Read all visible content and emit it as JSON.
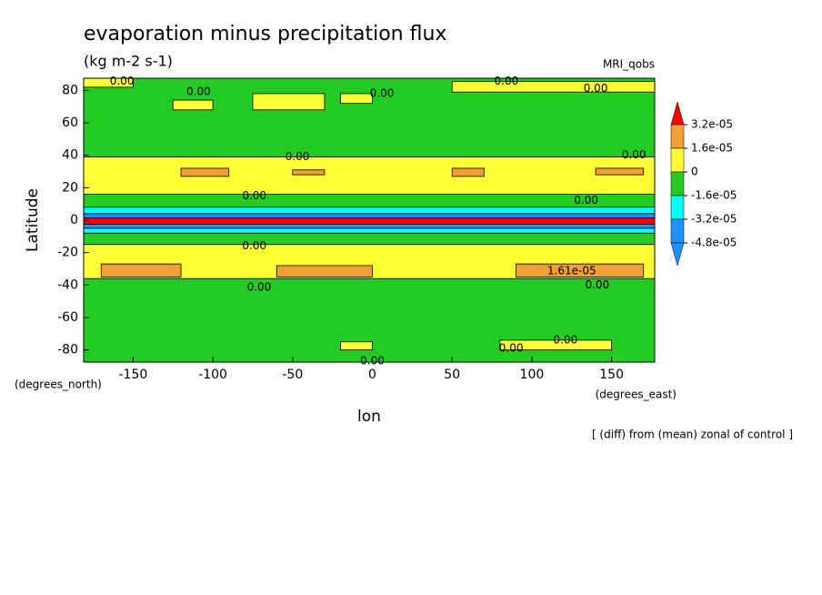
{
  "chart_data": {
    "type": "contour",
    "title": "evaporation minus precipitation flux",
    "subtitle": "(kg m-2 s-1)",
    "dataset": "MRI_qobs",
    "x_label": "lon",
    "y_label": "Latitude",
    "x_units": "(degrees_east)",
    "y_units": "(degrees_north)",
    "footnote": "[ (diff) from (mean) zonal of control ]",
    "xlim": [
      -181,
      177
    ],
    "ylim": [
      -87.5,
      87.5
    ],
    "xticks": [
      -150,
      -100,
      -50,
      0,
      50,
      100,
      150
    ],
    "yticks": [
      80,
      60,
      40,
      20,
      0,
      -20,
      -40,
      -60,
      -80
    ],
    "background": "#22cc22",
    "regions": [
      {
        "lon": [
          -181,
          177
        ],
        "lat": [
          16,
          39
        ],
        "color": "#ffff33"
      },
      {
        "lon": [
          -120,
          -90
        ],
        "lat": [
          27,
          32
        ],
        "color": "#f0a030"
      },
      {
        "lon": [
          -50,
          -30
        ],
        "lat": [
          28,
          31
        ],
        "color": "#f0a030"
      },
      {
        "lon": [
          50,
          70
        ],
        "lat": [
          27,
          32
        ],
        "color": "#f0a030"
      },
      {
        "lon": [
          140,
          170
        ],
        "lat": [
          28,
          32
        ],
        "color": "#f0a030"
      },
      {
        "lon": [
          -181,
          177
        ],
        "lat": [
          -36,
          -15
        ],
        "color": "#ffff33"
      },
      {
        "lon": [
          -170,
          -120
        ],
        "lat": [
          -35,
          -27
        ],
        "color": "#f0a030"
      },
      {
        "lon": [
          -60,
          0
        ],
        "lat": [
          -35,
          -28
        ],
        "color": "#f0a030"
      },
      {
        "lon": [
          90,
          170
        ],
        "lat": [
          -35,
          -27
        ],
        "color": "#f0a030"
      },
      {
        "lon": [
          -181,
          177
        ],
        "lat": [
          4,
          8
        ],
        "color": "#00ffff"
      },
      {
        "lon": [
          -181,
          177
        ],
        "lat": [
          1.4,
          4
        ],
        "color": "#1e90ff"
      },
      {
        "lon": [
          -181,
          177
        ],
        "lat": [
          -2.5,
          1.4
        ],
        "color": "#ff0000"
      },
      {
        "lon": [
          -181,
          177
        ],
        "lat": [
          -5,
          -2.5
        ],
        "color": "#1e90ff"
      },
      {
        "lon": [
          -181,
          177
        ],
        "lat": [
          -8,
          -5
        ],
        "color": "#00ffff"
      },
      {
        "lon": [
          -125,
          -100
        ],
        "lat": [
          68,
          74
        ],
        "color": "#ffff33"
      },
      {
        "lon": [
          -75,
          -30
        ],
        "lat": [
          68,
          78
        ],
        "color": "#ffff33"
      },
      {
        "lon": [
          -20,
          0
        ],
        "lat": [
          72,
          78
        ],
        "color": "#ffff33"
      },
      {
        "lon": [
          50,
          177
        ],
        "lat": [
          79,
          85.5
        ],
        "color": "#ffff33"
      },
      {
        "lon": [
          -181,
          -150
        ],
        "lat": [
          82,
          87.5
        ],
        "color": "#ffff33"
      },
      {
        "lon": [
          -20,
          0
        ],
        "lat": [
          -80,
          -75
        ],
        "color": "#ffff33"
      },
      {
        "lon": [
          80,
          150
        ],
        "lat": [
          -80,
          -74
        ],
        "color": "#ffff33"
      }
    ],
    "contour_labels": [
      {
        "text": "0.00",
        "lon": -157,
        "lat": 85.5
      },
      {
        "text": "0.00",
        "lon": -109,
        "lat": 79
      },
      {
        "text": "0.00",
        "lon": 6,
        "lat": 78
      },
      {
        "text": "0.00",
        "lon": 84,
        "lat": 85.5
      },
      {
        "text": "0.00",
        "lon": 140,
        "lat": 81
      },
      {
        "text": "0.00",
        "lon": -47,
        "lat": 39
      },
      {
        "text": "0.00",
        "lon": 164,
        "lat": 40
      },
      {
        "text": "0.00",
        "lon": -74,
        "lat": 15
      },
      {
        "text": "0.00",
        "lon": 134,
        "lat": 12
      },
      {
        "text": "0.00",
        "lon": -74,
        "lat": -16
      },
      {
        "text": "0.00",
        "lon": -71,
        "lat": -41.5
      },
      {
        "text": "0.00",
        "lon": 141,
        "lat": -40
      },
      {
        "text": "1.61e-05",
        "lon": 125,
        "lat": -31.5
      },
      {
        "text": "0.00",
        "lon": 87,
        "lat": -79
      },
      {
        "text": "0.00",
        "lon": 121,
        "lat": -74
      },
      {
        "text": "0.00",
        "lon": 0,
        "lat": -87
      }
    ],
    "colorbar": {
      "ticks": [
        {
          "value": 3.2e-05,
          "label": "3.2e-05"
        },
        {
          "value": 1.6e-05,
          "label": "1.6e-05"
        },
        0,
        {
          "value": -1.6e-05,
          "label": "-1.6e-05"
        },
        {
          "value": -3.2e-05,
          "label": "-3.2e-05"
        },
        {
          "value": -4.8e-05,
          "label": "-4.8e-05"
        }
      ],
      "colors": [
        "#ff0000",
        "#f0a030",
        "#ffff33",
        "#22cc22",
        "#00ffff",
        "#1e90ff",
        "#1e90ff"
      ]
    }
  }
}
